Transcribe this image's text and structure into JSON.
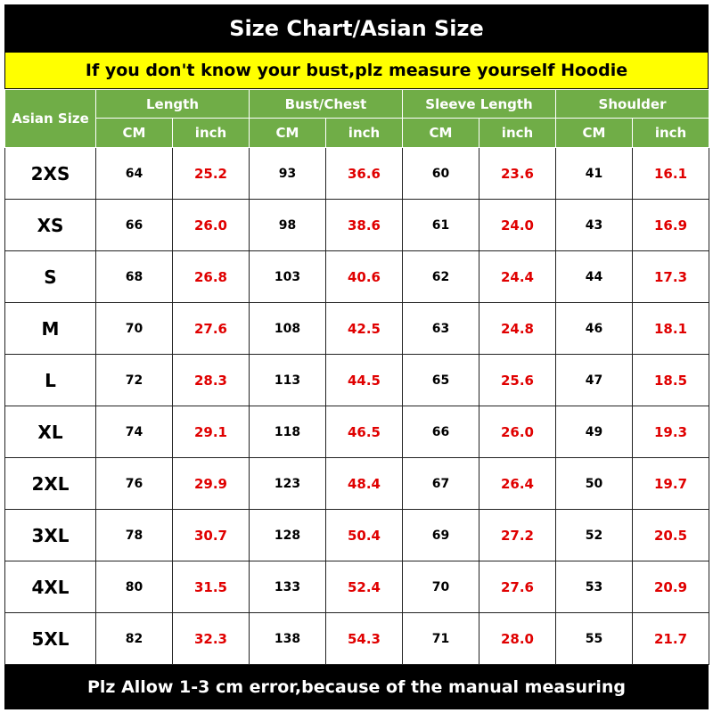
{
  "title": "Size Chart/Asian Size",
  "subtitle": "If you don't know your bust,plz measure yourself Hoodie",
  "table": {
    "corner": "Asian Size",
    "groups": [
      "Length",
      "Bust/Chest",
      "Sleeve Length",
      "Shoulder"
    ],
    "units": [
      "CM",
      "inch",
      "CM",
      "inch",
      "CM",
      "inch",
      "CM",
      "inch"
    ],
    "rows": [
      [
        "2XS",
        "64",
        "25.2",
        "93",
        "36.6",
        "60",
        "23.6",
        "41",
        "16.1"
      ],
      [
        "XS",
        "66",
        "26.0",
        "98",
        "38.6",
        "61",
        "24.0",
        "43",
        "16.9"
      ],
      [
        "S",
        "68",
        "26.8",
        "103",
        "40.6",
        "62",
        "24.4",
        "44",
        "17.3"
      ],
      [
        "M",
        "70",
        "27.6",
        "108",
        "42.5",
        "63",
        "24.8",
        "46",
        "18.1"
      ],
      [
        "L",
        "72",
        "28.3",
        "113",
        "44.5",
        "65",
        "25.6",
        "47",
        "18.5"
      ],
      [
        "XL",
        "74",
        "29.1",
        "118",
        "46.5",
        "66",
        "26.0",
        "49",
        "19.3"
      ],
      [
        "2XL",
        "76",
        "29.9",
        "123",
        "48.4",
        "67",
        "26.4",
        "50",
        "19.7"
      ],
      [
        "3XL",
        "78",
        "30.7",
        "128",
        "50.4",
        "69",
        "27.2",
        "52",
        "20.5"
      ],
      [
        "4XL",
        "80",
        "31.5",
        "133",
        "52.4",
        "70",
        "27.6",
        "53",
        "20.9"
      ],
      [
        "5XL",
        "82",
        "32.3",
        "138",
        "54.3",
        "71",
        "28.0",
        "55",
        "21.7"
      ]
    ]
  },
  "footer": "Plz Allow 1-3 cm error,because of the manual measuring"
}
